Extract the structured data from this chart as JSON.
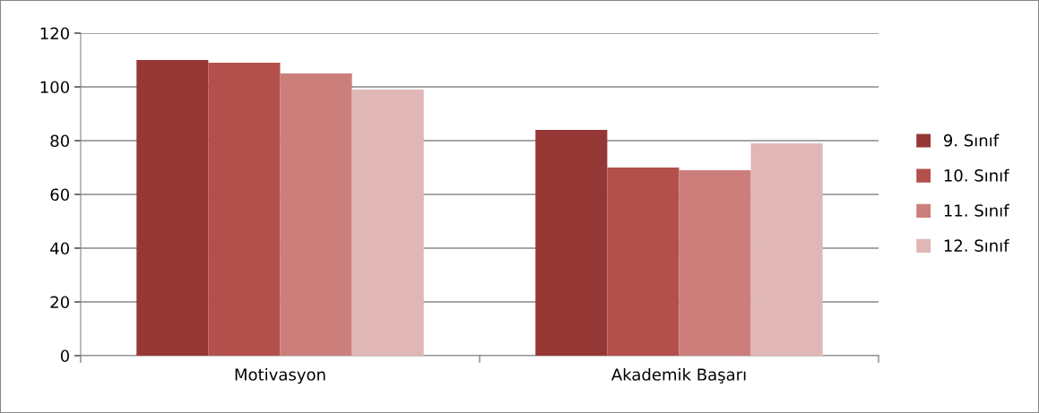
{
  "chart_data": {
    "type": "bar",
    "categories": [
      "Motivasyon",
      "Akademik Başarı"
    ],
    "series": [
      {
        "name": "9. Sınıf",
        "color": "#953735",
        "values": [
          110,
          84
        ]
      },
      {
        "name": "10. Sınıf",
        "color": "#b3504c",
        "values": [
          109,
          70
        ]
      },
      {
        "name": "11. Sınıf",
        "color": "#cc7e7b",
        "values": [
          105,
          69
        ]
      },
      {
        "name": "12. Sınıf",
        "color": "#e0b6b6",
        "values": [
          99,
          79
        ]
      }
    ],
    "ylim": [
      0,
      120
    ],
    "yticks": [
      0,
      20,
      40,
      60,
      80,
      100,
      120
    ],
    "grid": "y",
    "legend": "right"
  }
}
